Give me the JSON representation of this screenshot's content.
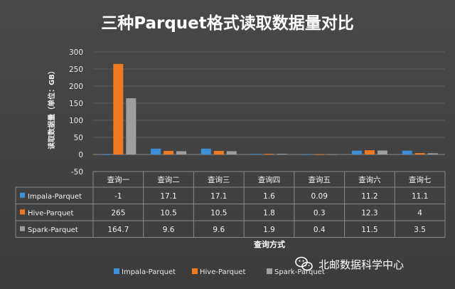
{
  "colors": {
    "impala": "#3c8fd6",
    "hive": "#f07a22",
    "spark": "#9e9e9e",
    "background": "#404040",
    "grid": "#5c5c5c",
    "table_line": "#8a8a8a"
  },
  "watermark": {
    "icon": "wechat-icon",
    "text": "北邮数据科学中心"
  },
  "chart_data": {
    "type": "bar",
    "title": "三种Parquet格式读取数据量对比",
    "xlabel": "查询方式",
    "ylabel": "读取数据量（单位：GB）",
    "ylim": [
      -50,
      300
    ],
    "yticks": [
      -50,
      0,
      50,
      100,
      150,
      200,
      250,
      300
    ],
    "grid": true,
    "legend_position": "bottom",
    "categories": [
      "查询一",
      "查询二",
      "查询三",
      "查询四",
      "查询五",
      "查询六",
      "查询七"
    ],
    "series": [
      {
        "name": "Impala-Parquet",
        "values": [
          -1,
          17.1,
          17.1,
          1.6,
          0.09,
          11.2,
          11.1
        ],
        "labels": [
          "-1",
          "17.1",
          "17.1",
          "1.6",
          "0.09",
          "11.2",
          "11.1"
        ]
      },
      {
        "name": "Hive-Parquet",
        "values": [
          265,
          10.5,
          10.5,
          1.8,
          0.3,
          12.3,
          4
        ],
        "labels": [
          "265",
          "10.5",
          "10.5",
          "1.8",
          "0.3",
          "12.3",
          "4"
        ]
      },
      {
        "name": "Spark-Parquet",
        "values": [
          164.7,
          9.6,
          9.6,
          1.9,
          0.4,
          11.5,
          3.5
        ],
        "labels": [
          "164.7",
          "9.6",
          "9.6",
          "1.9",
          "0.4",
          "11.5",
          "3.5"
        ]
      }
    ]
  }
}
